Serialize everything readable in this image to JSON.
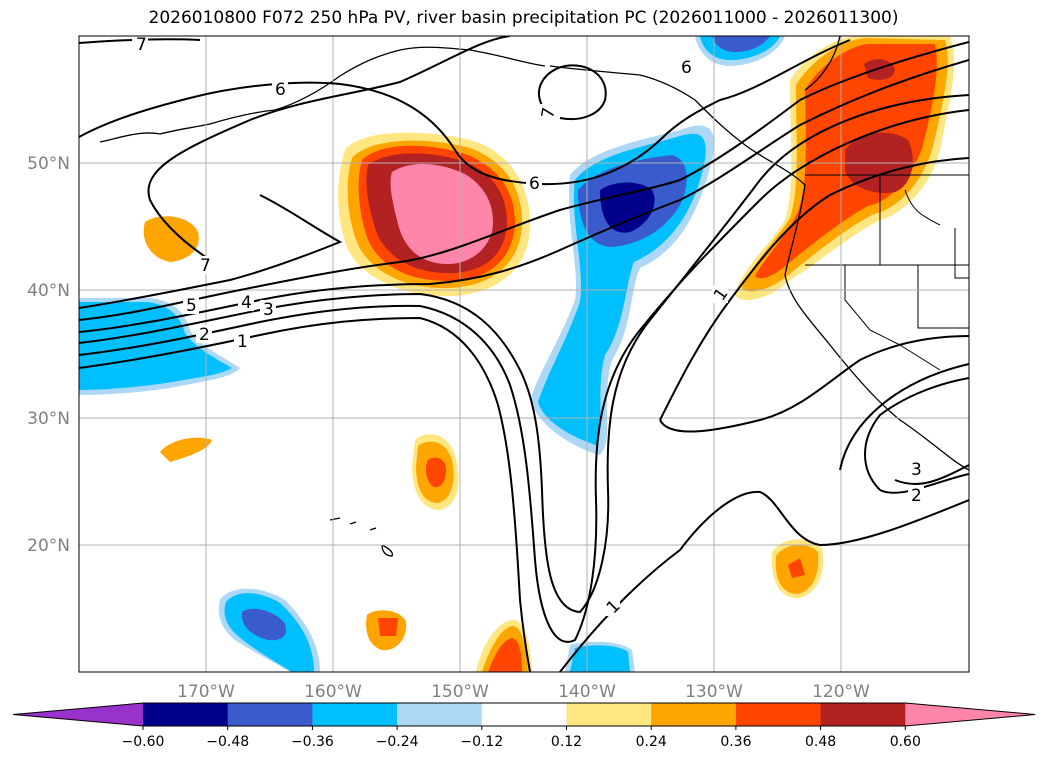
{
  "title": "2026010800 F072 250 hPa PV, river basin precipitation PC (2026011000 - 2026011300)",
  "lat_labels": [
    "50°N",
    "40°N",
    "30°N",
    "20°N"
  ],
  "lon_labels": [
    "170°W",
    "160°W",
    "150°W",
    "140°W",
    "130°W",
    "120°W"
  ],
  "contour_labels": [
    "7",
    "6",
    "6",
    "6",
    "7",
    "7",
    "5",
    "4",
    "3",
    "2",
    "1",
    "1",
    "1",
    "3",
    "2"
  ],
  "colorbar": {
    "ticks": [
      "−0.60",
      "−0.48",
      "−0.36",
      "−0.24",
      "−0.12",
      "0.12",
      "0.24",
      "0.36",
      "0.48",
      "0.60"
    ],
    "colors": [
      "#9932cc",
      "#00008b",
      "#3a5bcc",
      "#00bfff",
      "#add8f5",
      "#ffffff",
      "#ffe680",
      "#ffa500",
      "#ff4500",
      "#b22222",
      "#ff85aa"
    ]
  }
}
